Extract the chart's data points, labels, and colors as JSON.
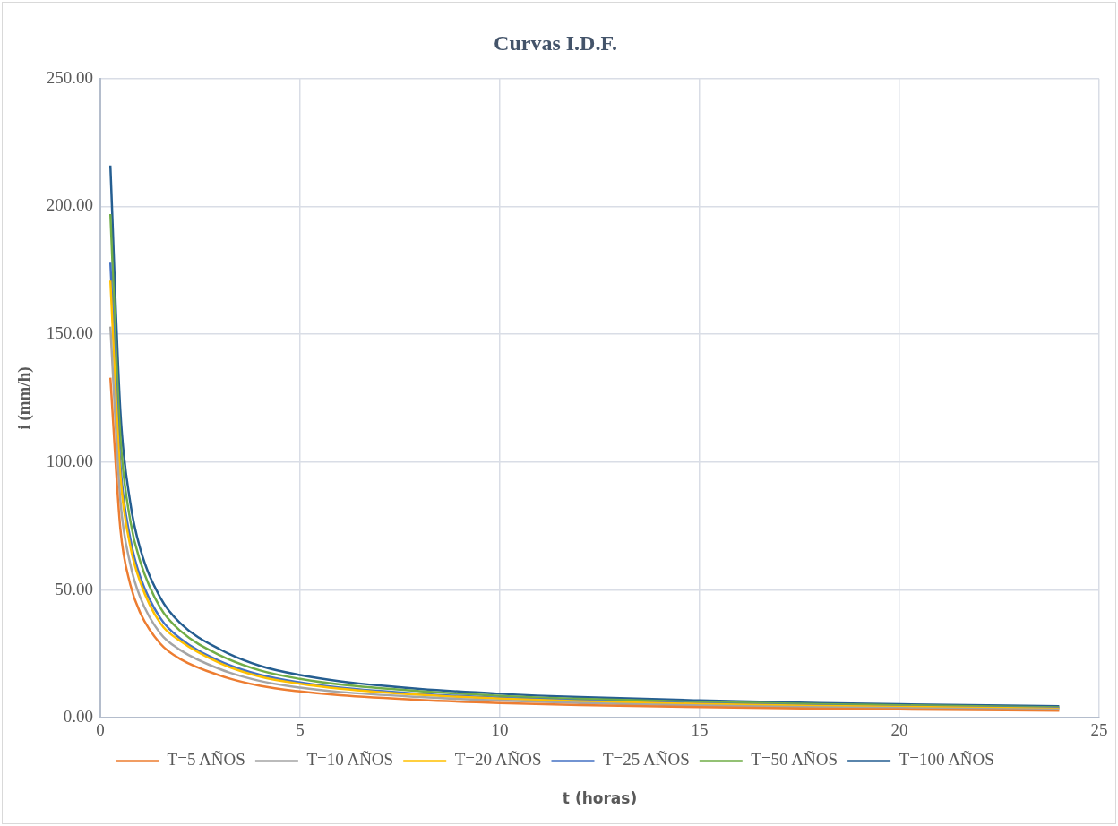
{
  "chart_data": {
    "type": "line",
    "title": "Curvas I.D.F.",
    "xlabel": "t (horas)",
    "ylabel": "i (mm/h)",
    "x": [
      0.25,
      0.5,
      0.75,
      1,
      1.5,
      2,
      3,
      4,
      5,
      6,
      8,
      10,
      12,
      15,
      18,
      20,
      24
    ],
    "series": [
      {
        "name": "T=5 AÑOS",
        "color": "#ed7d31",
        "values": [
          133,
          74,
          52,
          41,
          29,
          23,
          16.5,
          12.5,
          10.3,
          8.8,
          7,
          5.8,
          5,
          4.2,
          3.6,
          3.3,
          2.8
        ]
      },
      {
        "name": "T=10 AÑOS",
        "color": "#a5a5a5",
        "values": [
          153,
          85,
          60,
          47,
          33,
          26.5,
          19,
          14.4,
          11.8,
          10.1,
          8.1,
          6.7,
          5.8,
          4.8,
          4.1,
          3.8,
          3.2
        ]
      },
      {
        "name": "T=20 AÑOS",
        "color": "#ffc000",
        "values": [
          171,
          95,
          67,
          53,
          37,
          30,
          21.3,
          16.1,
          13.3,
          11.4,
          9,
          7.5,
          6.5,
          5.4,
          4.6,
          4.3,
          3.6
        ]
      },
      {
        "name": "T=25 AÑOS",
        "color": "#4472c4",
        "values": [
          178,
          99,
          70,
          55,
          39,
          31,
          22.1,
          16.8,
          13.8,
          11.8,
          9.4,
          7.8,
          6.7,
          5.6,
          4.8,
          4.4,
          3.8
        ]
      },
      {
        "name": "T=50 AÑOS",
        "color": "#70ad47",
        "values": [
          197,
          110,
          77,
          61,
          43,
          34,
          24.4,
          18.5,
          15.2,
          13,
          10.4,
          8.6,
          7.4,
          6.2,
          5.3,
          4.9,
          4.1
        ]
      },
      {
        "name": "T=100 AÑOS",
        "color": "#255e91",
        "values": [
          216,
          120,
          84,
          66,
          47,
          37,
          26.7,
          20.3,
          16.7,
          14.3,
          11.3,
          9.4,
          8.1,
          6.8,
          5.8,
          5.3,
          4.5
        ]
      }
    ],
    "xlim": [
      0,
      25
    ],
    "xticks": [
      0,
      5,
      10,
      15,
      20,
      25
    ],
    "ylim": [
      0,
      250
    ],
    "yticks": [
      {
        "value": 0,
        "label": "0.00"
      },
      {
        "value": 50,
        "label": "50.00"
      },
      {
        "value": 100,
        "label": "100.00"
      },
      {
        "value": 150,
        "label": "150.00"
      },
      {
        "value": 200,
        "label": "200.00"
      },
      {
        "value": 250,
        "label": "250.00"
      }
    ],
    "grid": true,
    "legend": "bottom",
    "marker": "none",
    "line_style": "solid"
  }
}
